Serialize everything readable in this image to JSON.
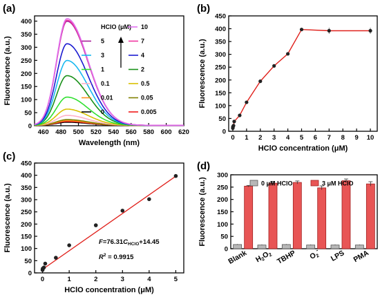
{
  "colors": {
    "axis": "#000000",
    "fit_line": "#e0201b",
    "bar_treated": "#e85555",
    "bar_control": "#b8b8b8",
    "marker": "#222222"
  },
  "chart_data": [
    {
      "id": "a",
      "panel_label": "(a)",
      "type": "line",
      "xlabel": "Wavelength (nm)",
      "ylabel": "Fluorescence (a.u.)",
      "xlim": [
        450,
        620
      ],
      "ylim": [
        0,
        420
      ],
      "xticks": [
        460,
        480,
        500,
        520,
        540,
        560,
        580,
        600,
        620
      ],
      "yticks": [
        0,
        50,
        100,
        150,
        200,
        250,
        300,
        350,
        400
      ],
      "legend_title": "HClO (μM)",
      "legend_placement": "top-right",
      "peak_wavelength": 487,
      "series": [
        {
          "name": "10",
          "color": "#e070ee",
          "peak": 408
        },
        {
          "name": "7",
          "color": "#f035a0",
          "peak": 402
        },
        {
          "name": "5",
          "color": "#a8209a",
          "peak": 398
        },
        {
          "name": "4",
          "color": "#1a1ad0",
          "peak": 312
        },
        {
          "name": "3",
          "color": "#18b8f0",
          "peak": 248
        },
        {
          "name": "2",
          "color": "#189018",
          "peak": 190
        },
        {
          "name": "1",
          "color": "#30e030",
          "peak": 108
        },
        {
          "name": "0.5",
          "color": "#d8c000",
          "peak": 62
        },
        {
          "name": "0.1",
          "color": "#ffb0c8",
          "peak": 38
        },
        {
          "name": "0.05",
          "color": "#808000",
          "peak": 22
        },
        {
          "name": "0.01",
          "color": "#ff9020",
          "peak": 18
        },
        {
          "name": "0.005",
          "color": "#f01818",
          "peak": 15
        },
        {
          "name": "0",
          "color": "#000000",
          "peak": 12
        }
      ],
      "legend_rows": [
        [
          {
            "name": "10",
            "color": "#e070ee"
          }
        ],
        [
          {
            "name": "5",
            "color": "#a8209a"
          },
          {
            "name": "7",
            "color": "#f035a0"
          }
        ],
        [
          {
            "name": "3",
            "color": "#18b8f0"
          },
          {
            "name": "4",
            "color": "#1a1ad0"
          }
        ],
        [
          {
            "name": "1",
            "color": "#30e030"
          },
          {
            "name": "2",
            "color": "#189018"
          }
        ],
        [
          {
            "name": "0.1",
            "color": "#ffb0c8"
          },
          {
            "name": "0.5",
            "color": "#d8c000"
          }
        ],
        [
          {
            "name": "0.01",
            "color": "#ff9020"
          },
          {
            "name": "0.05",
            "color": "#808000"
          }
        ],
        [
          {
            "name": "0",
            "color": "#000000"
          },
          {
            "name": "0.005",
            "color": "#f01818"
          }
        ]
      ]
    },
    {
      "id": "b",
      "panel_label": "(b)",
      "type": "line",
      "xlabel": "HClO concentration (μM)",
      "ylabel": "Fluorescence (a.u.)",
      "xlim": [
        -0.3,
        10.5
      ],
      "ylim": [
        0,
        450
      ],
      "xticks": [
        0,
        1,
        2,
        3,
        4,
        5,
        6,
        7,
        8,
        9,
        10
      ],
      "yticks": [
        0,
        50,
        100,
        150,
        200,
        250,
        300,
        350,
        400,
        450
      ],
      "x": [
        0,
        0.005,
        0.01,
        0.05,
        0.1,
        0.5,
        1,
        2,
        3,
        4,
        5,
        7,
        10
      ],
      "y": [
        12,
        15,
        18,
        22,
        38,
        62,
        113,
        195,
        255,
        302,
        397,
        392,
        392
      ],
      "err": [
        3,
        3,
        3,
        3,
        3,
        4,
        5,
        5,
        6,
        6,
        6,
        12,
        12
      ]
    },
    {
      "id": "c",
      "panel_label": "(c)",
      "type": "scatter",
      "xlabel": "HClO concentration (μM)",
      "ylabel": "Fluorescence (a.u.)",
      "xlim": [
        -0.3,
        5.3
      ],
      "ylim": [
        0,
        450
      ],
      "xticks": [
        0,
        1,
        2,
        3,
        4,
        5
      ],
      "yticks": [
        0,
        50,
        100,
        150,
        200,
        250,
        300,
        350,
        400,
        450
      ],
      "x": [
        0,
        0.005,
        0.01,
        0.05,
        0.1,
        0.5,
        1,
        2,
        3,
        4,
        5
      ],
      "y": [
        12,
        15,
        18,
        22,
        38,
        62,
        113,
        195,
        255,
        302,
        397
      ],
      "fit": {
        "slope": 76.31,
        "intercept": 14.45
      },
      "equation": {
        "lhs": "F",
        "mid": "=76.31",
        "var": "C",
        "sub": "HClO",
        "rhs": "+14.45"
      },
      "r2": {
        "label": "R",
        "sup": "2",
        "value": " = 0.9915"
      }
    },
    {
      "id": "d",
      "panel_label": "(d)",
      "type": "bar",
      "xlabel": "",
      "ylabel": "Fluorescence (a.u.)",
      "ylim": [
        0,
        300
      ],
      "yticks": [
        0,
        50,
        100,
        150,
        200,
        250,
        300
      ],
      "categories": [
        "Blank",
        "H2O2",
        "TBHP",
        "O2-",
        "LPS",
        "PMA"
      ],
      "category_parts": [
        {
          "base": "Blank"
        },
        {
          "base": "H",
          "sub": "2",
          "mid": "O",
          "sub2": "2"
        },
        {
          "base": "TBHP"
        },
        {
          "base": "O",
          "sub": "2",
          "sup": "-"
        },
        {
          "base": "LPS"
        },
        {
          "base": "PMA"
        }
      ],
      "series": [
        {
          "name": "0 μM HClO",
          "values": [
            17,
            15,
            17,
            15,
            15,
            15
          ],
          "err": [
            2,
            2,
            2,
            2,
            2,
            2
          ]
        },
        {
          "name": "3 μM HClO",
          "values": [
            254,
            266,
            269,
            247,
            276,
            263
          ],
          "err": [
            3,
            7,
            6,
            8,
            7,
            9
          ]
        }
      ],
      "legend_placement": "top"
    }
  ]
}
